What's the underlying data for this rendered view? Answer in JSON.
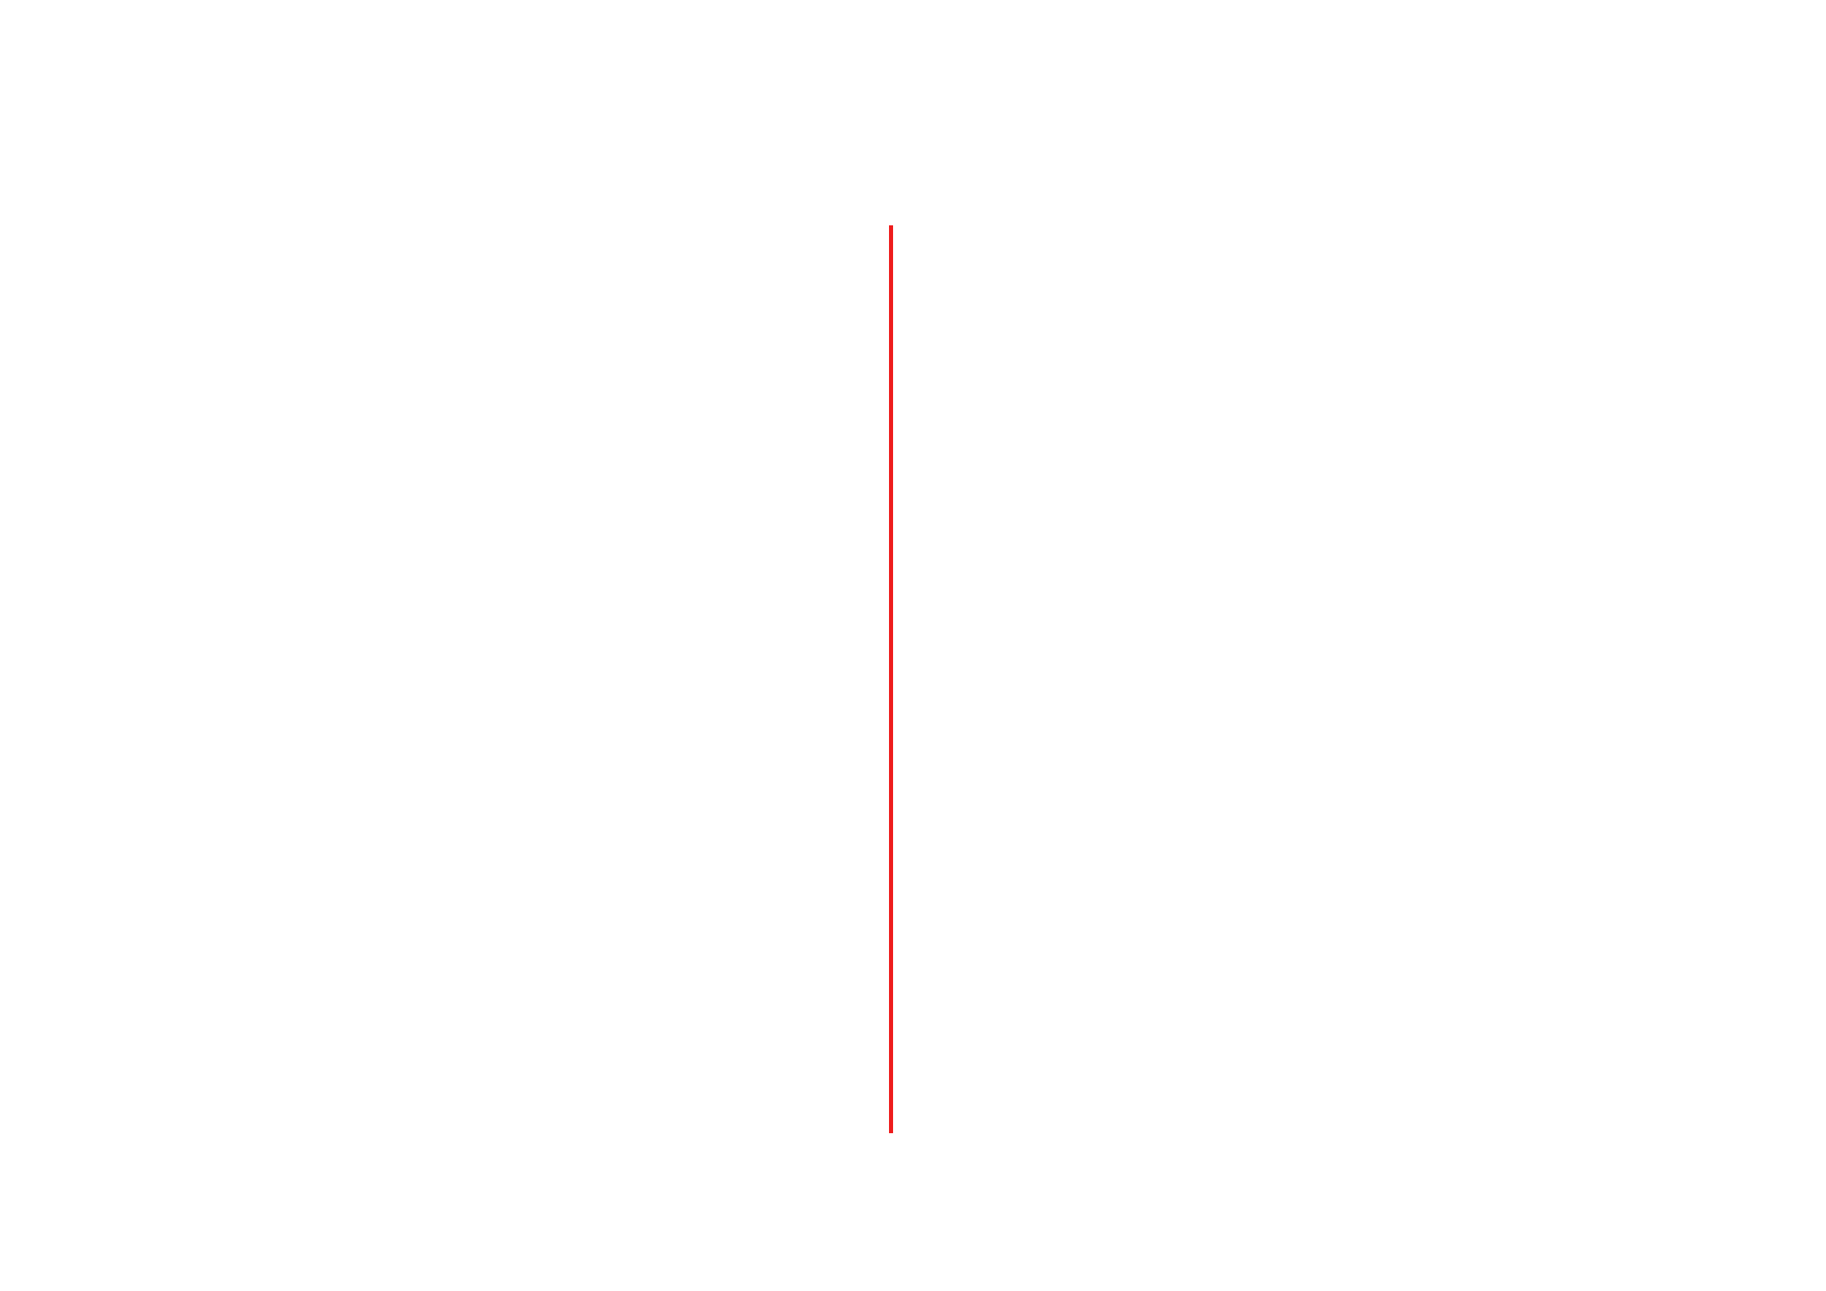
{
  "canvas": {
    "background_color": "#ffffff"
  },
  "line": {
    "orientation": "vertical",
    "color": "#ee1c1c"
  }
}
